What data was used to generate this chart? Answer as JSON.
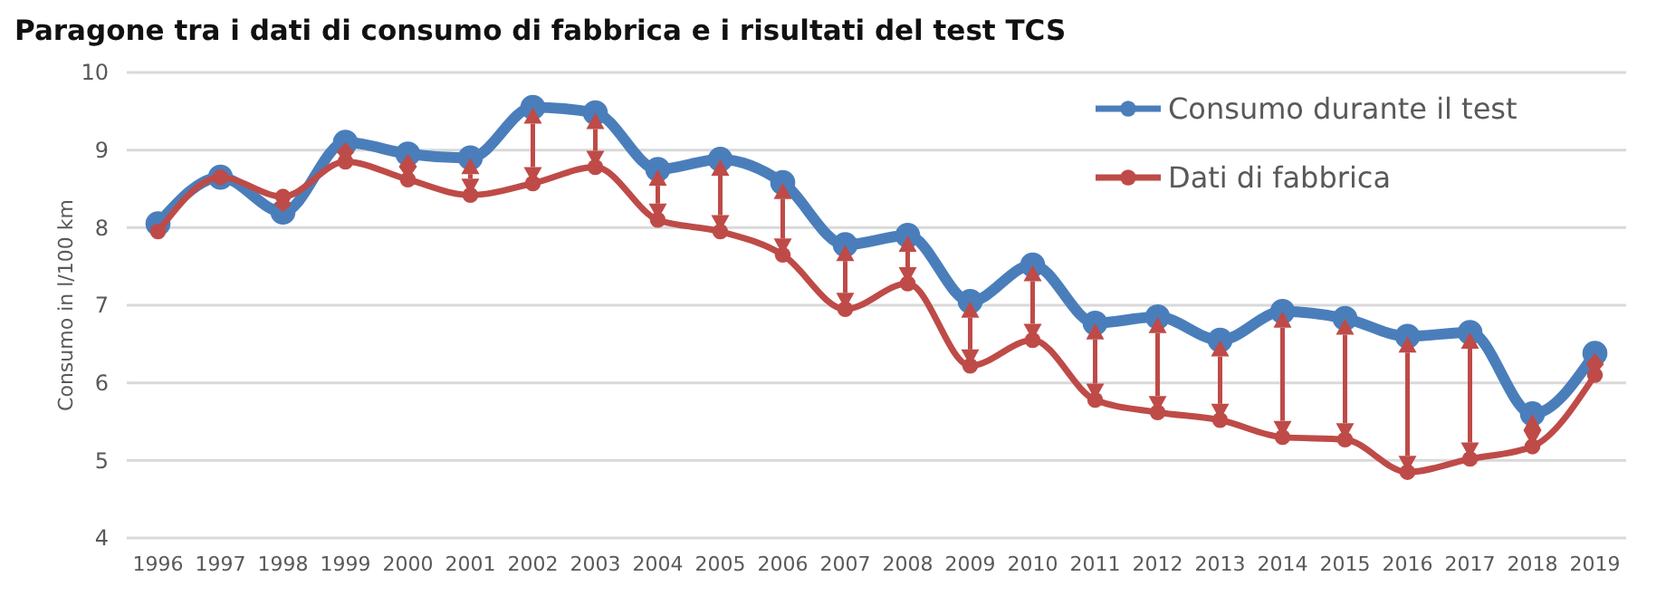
{
  "chart_data": {
    "type": "line",
    "title": "Paragone tra i dati di consumo di fabbrica e i risultati del test TCS",
    "ylabel": "Consumo in l/100 km",
    "categories": [
      "1996",
      "1997",
      "1998",
      "1999",
      "2000",
      "2001",
      "2002",
      "2003",
      "2004",
      "2005",
      "2006",
      "2007",
      "2008",
      "2009",
      "2010",
      "2011",
      "2012",
      "2013",
      "2014",
      "2015",
      "2016",
      "2017",
      "2018",
      "2019"
    ],
    "series": [
      {
        "name": "Consumo durante il test",
        "color": "#4a7ebb",
        "values": [
          8.05,
          8.65,
          8.2,
          9.1,
          8.95,
          8.9,
          9.55,
          9.48,
          8.75,
          8.88,
          8.58,
          7.78,
          7.9,
          7.05,
          7.52,
          6.77,
          6.85,
          6.55,
          6.92,
          6.83,
          6.6,
          6.65,
          5.6,
          6.38
        ]
      },
      {
        "name": "Dati di fabbrica",
        "color": "#be4b48",
        "values": [
          7.95,
          8.65,
          8.4,
          8.85,
          8.62,
          8.42,
          8.57,
          8.78,
          8.1,
          7.95,
          7.65,
          6.95,
          7.28,
          6.22,
          6.55,
          5.78,
          5.62,
          5.52,
          5.3,
          5.27,
          4.85,
          5.02,
          5.18,
          6.1
        ]
      }
    ],
    "ylim": [
      4,
      10
    ],
    "yticks": [
      4,
      5,
      6,
      7,
      8,
      9,
      10
    ],
    "grid": "y",
    "legend": "top right",
    "marker": "circle",
    "line_style": "solid"
  }
}
